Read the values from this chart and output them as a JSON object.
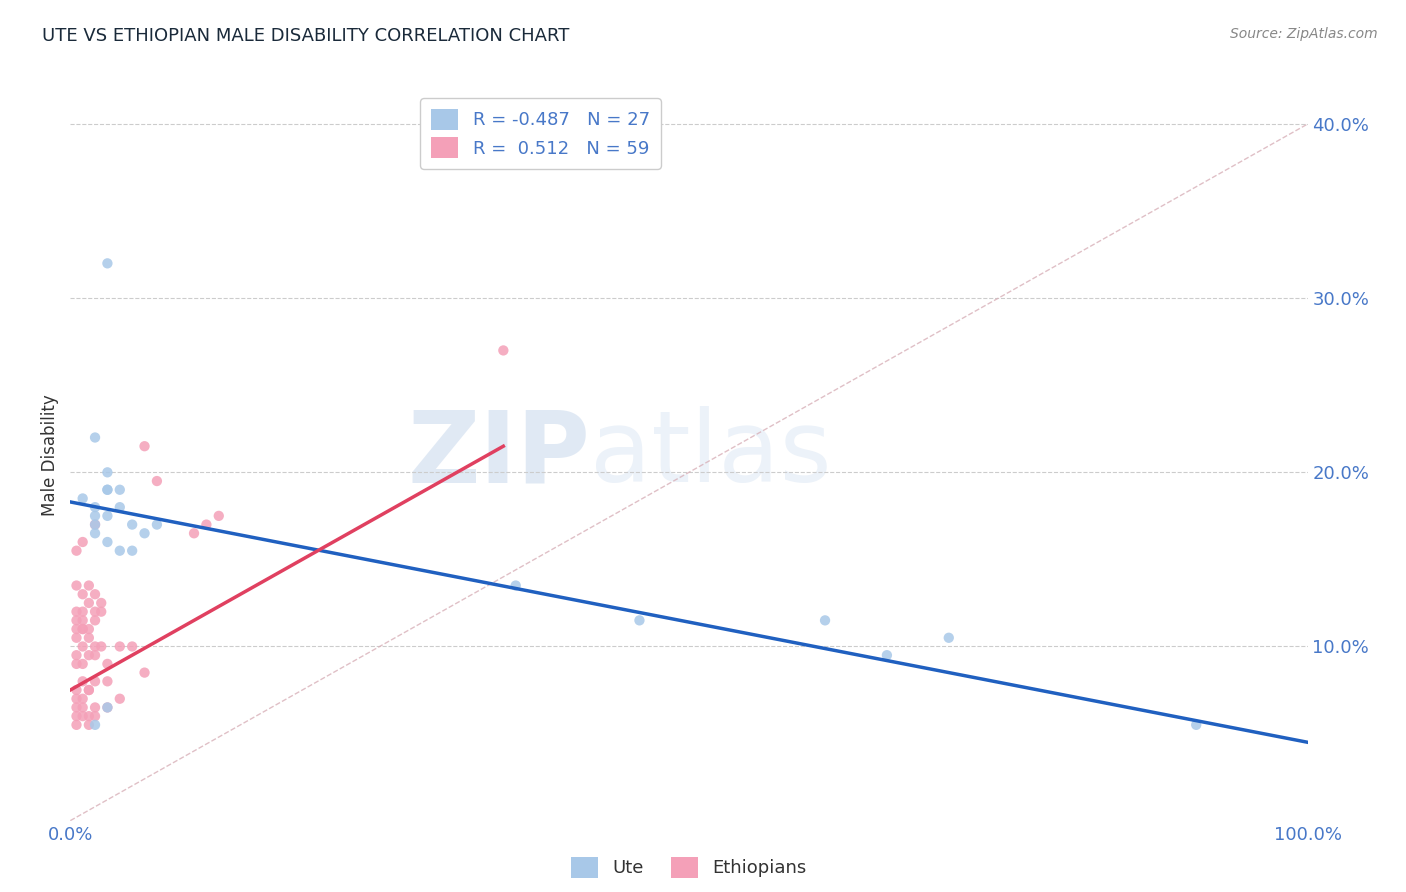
{
  "title": "UTE VS ETHIOPIAN MALE DISABILITY CORRELATION CHART",
  "source": "Source: ZipAtlas.com",
  "ylabel": "Male Disability",
  "watermark_zip": "ZIP",
  "watermark_atlas": "atlas",
  "ute_R": -0.487,
  "ute_N": 27,
  "eth_R": 0.512,
  "eth_N": 59,
  "ute_color": "#a8c8e8",
  "eth_color": "#f4a0b8",
  "ute_line_color": "#2060c0",
  "eth_line_color": "#e04060",
  "ref_line_color": "#d8b0b8",
  "axis_color": "#4878c8",
  "title_color": "#1a2a3a",
  "source_color": "#888888",
  "background_color": "#ffffff",
  "grid_color": "#cccccc",
  "ute_points_x": [
    0.03,
    0.01,
    0.02,
    0.03,
    0.05,
    0.02,
    0.04,
    0.03,
    0.02,
    0.02,
    0.04,
    0.06,
    0.07,
    0.03,
    0.36,
    0.61,
    0.71,
    0.91,
    0.03,
    0.02,
    0.03,
    0.04,
    0.46,
    0.66,
    0.02,
    0.03,
    0.05
  ],
  "ute_points_y": [
    0.19,
    0.185,
    0.175,
    0.16,
    0.155,
    0.165,
    0.155,
    0.175,
    0.18,
    0.17,
    0.18,
    0.165,
    0.17,
    0.19,
    0.135,
    0.115,
    0.105,
    0.055,
    0.32,
    0.22,
    0.2,
    0.19,
    0.115,
    0.095,
    0.055,
    0.065,
    0.17
  ],
  "eth_points_x": [
    0.005,
    0.01,
    0.015,
    0.02,
    0.025,
    0.005,
    0.01,
    0.015,
    0.02,
    0.005,
    0.01,
    0.015,
    0.005,
    0.01,
    0.02,
    0.025,
    0.005,
    0.01,
    0.015,
    0.02,
    0.005,
    0.01,
    0.015,
    0.005,
    0.01,
    0.02,
    0.025,
    0.03,
    0.04,
    0.05,
    0.03,
    0.06,
    0.005,
    0.01,
    0.015,
    0.02,
    0.005,
    0.01,
    0.015,
    0.005,
    0.005,
    0.01,
    0.015,
    0.02,
    0.005,
    0.01,
    0.015,
    0.02,
    0.03,
    0.04,
    0.005,
    0.01,
    0.02,
    0.1,
    0.11,
    0.12,
    0.06,
    0.07,
    0.35
  ],
  "eth_points_y": [
    0.135,
    0.13,
    0.135,
    0.13,
    0.125,
    0.12,
    0.12,
    0.125,
    0.12,
    0.115,
    0.115,
    0.11,
    0.11,
    0.11,
    0.115,
    0.12,
    0.105,
    0.11,
    0.105,
    0.1,
    0.095,
    0.1,
    0.095,
    0.09,
    0.09,
    0.095,
    0.1,
    0.09,
    0.1,
    0.1,
    0.08,
    0.085,
    0.075,
    0.08,
    0.075,
    0.08,
    0.07,
    0.07,
    0.075,
    0.065,
    0.06,
    0.065,
    0.06,
    0.065,
    0.055,
    0.06,
    0.055,
    0.06,
    0.065,
    0.07,
    0.155,
    0.16,
    0.17,
    0.165,
    0.17,
    0.175,
    0.215,
    0.195,
    0.27
  ],
  "ylim": [
    0.0,
    0.42
  ],
  "xlim": [
    0.0,
    1.0
  ],
  "yticks": [
    0.1,
    0.2,
    0.3,
    0.4
  ],
  "ytick_labels": [
    "10.0%",
    "20.0%",
    "30.0%",
    "40.0%"
  ],
  "ute_line_x0": 0.0,
  "ute_line_y0": 0.183,
  "ute_line_x1": 1.0,
  "ute_line_y1": 0.045,
  "eth_line_x0": 0.0,
  "eth_line_y0": 0.075,
  "eth_line_x1": 0.35,
  "eth_line_y1": 0.215,
  "ref_line_x0": 0.0,
  "ref_line_y0": 0.0,
  "ref_line_x1": 1.0,
  "ref_line_y1": 0.4,
  "figsize": [
    14.06,
    8.92
  ],
  "dpi": 100
}
